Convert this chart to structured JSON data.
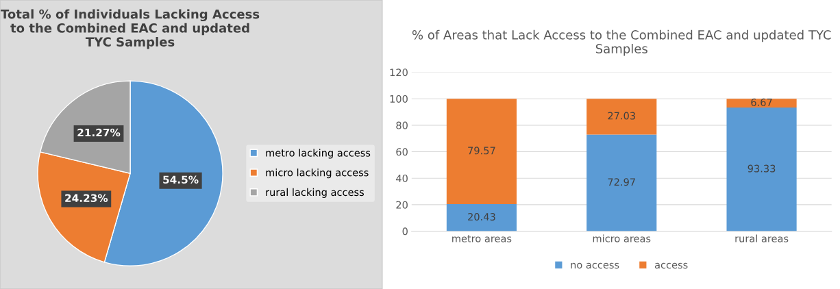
{
  "chart_data": [
    {
      "type": "pie",
      "title": "Total % of Individuals Lacking Access to the Combined EAC and updated TYC Samples",
      "categories": [
        "metro lacking access",
        "micro lacking access",
        "rural lacking access"
      ],
      "values": [
        54.5,
        24.23,
        21.27
      ],
      "colors": [
        "#5b9bd5",
        "#ed7d31",
        "#a5a5a5"
      ],
      "value_labels": [
        "54.5%",
        "24.23%",
        "21.27%"
      ],
      "legend": "right"
    },
    {
      "type": "bar",
      "title": "% of Areas that Lack Access to the Combined EAC and updated TYC Samples",
      "categories": [
        "metro areas",
        "micro areas",
        "rural areas"
      ],
      "stacked": true,
      "series": [
        {
          "name": "no access",
          "color": "#5b9bd5",
          "values": [
            20.43,
            72.97,
            93.33
          ]
        },
        {
          "name": "access",
          "color": "#ed7d31",
          "values": [
            79.57,
            27.03,
            6.67
          ]
        }
      ],
      "ylim": [
        0,
        120
      ],
      "yticks": [
        0,
        20,
        40,
        60,
        80,
        100,
        120
      ],
      "grid": "y",
      "legend": "bottom",
      "data_labels": true
    }
  ]
}
